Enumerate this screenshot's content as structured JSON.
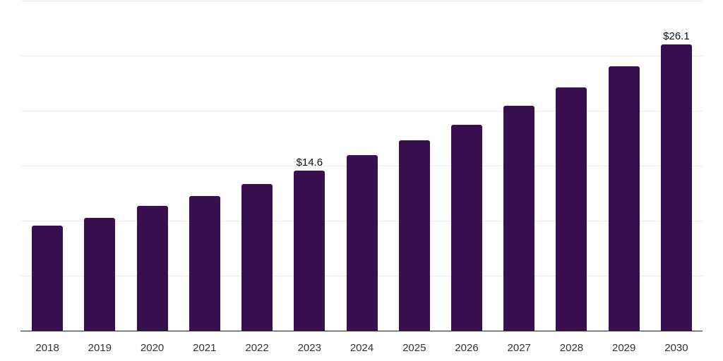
{
  "chart_data": {
    "type": "bar",
    "title": "",
    "xlabel": "",
    "ylabel": "",
    "categories": [
      "2018",
      "2019",
      "2020",
      "2021",
      "2022",
      "2023",
      "2024",
      "2025",
      "2026",
      "2027",
      "2028",
      "2029",
      "2030"
    ],
    "values": [
      9.6,
      10.3,
      11.4,
      12.3,
      13.4,
      14.6,
      16.0,
      17.4,
      18.8,
      20.5,
      22.2,
      24.1,
      26.1
    ],
    "data_labels": [
      "",
      "",
      "",
      "",
      "",
      "$14.6",
      "",
      "",
      "",
      "",
      "",
      "",
      "$26.1"
    ],
    "ylim": [
      0,
      30
    ],
    "gridline_step": 5,
    "grid": "horizontal",
    "y_axis_tick_labels": "none",
    "legend": "none",
    "colors": {
      "bar": "#381050",
      "gridline": "#ededed",
      "axis": "#262626",
      "tick_label": "#333333",
      "data_label": "#111111",
      "background": "#ffffff"
    }
  }
}
